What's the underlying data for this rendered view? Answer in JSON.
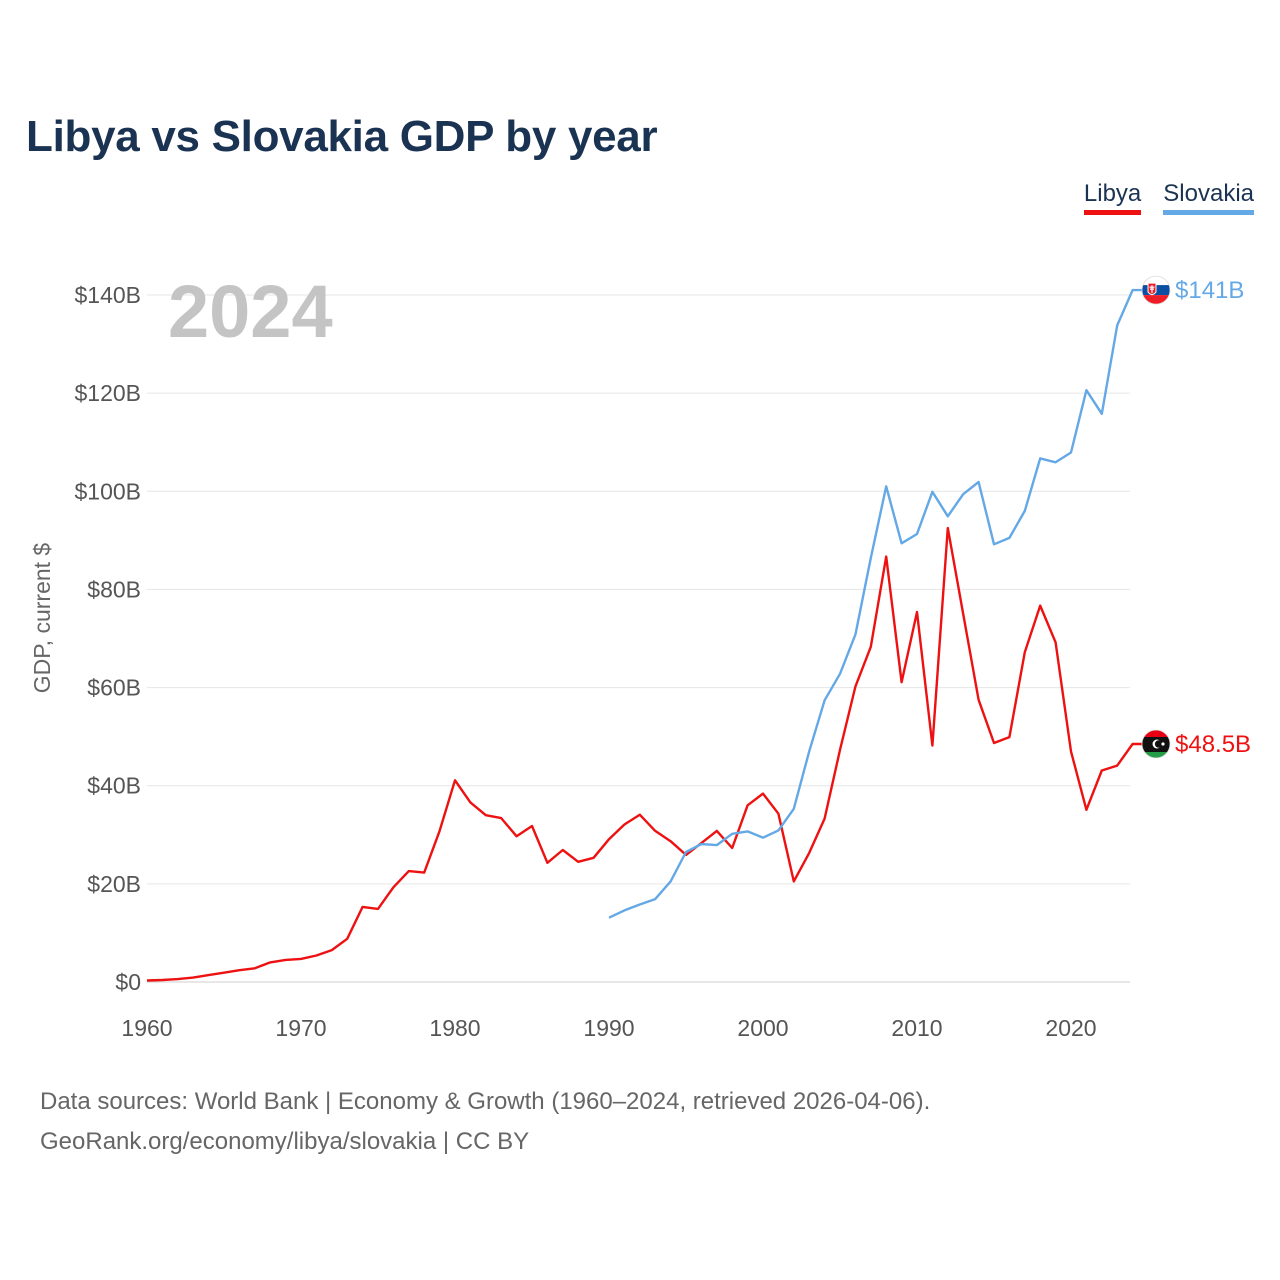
{
  "title": "Libya vs Slovakia GDP by year",
  "year_watermark": "2024",
  "legend": [
    {
      "label": "Libya",
      "color": "#ee1111"
    },
    {
      "label": "Slovakia",
      "color": "#64a8e6"
    }
  ],
  "footer": {
    "line1": "Data sources: World Bank | Economy & Growth (1960–2024, retrieved 2026-04-06).",
    "line2": "GeoRank.org/economy/libya/slovakia | CC BY"
  },
  "chart_data": {
    "type": "line",
    "title": "Libya vs Slovakia GDP by year",
    "xlabel": "",
    "ylabel": "GDP, current $",
    "xlim": [
      1960,
      2024
    ],
    "ylim": [
      0,
      140
    ],
    "x_ticks": [
      1960,
      1970,
      1980,
      1990,
      2000,
      2010,
      2020
    ],
    "y_ticks": [
      0,
      20,
      40,
      60,
      80,
      100,
      120,
      140
    ],
    "y_tick_labels": [
      "$0",
      "$20B",
      "$40B",
      "$60B",
      "$80B",
      "$100B",
      "$120B",
      "$140B"
    ],
    "units": "billions USD",
    "series": [
      {
        "name": "Libya",
        "color": "#ee1111",
        "end_label": "$48.5B",
        "flag": "libya-flag",
        "x": [
          1960,
          1961,
          1962,
          1963,
          1964,
          1965,
          1966,
          1967,
          1968,
          1969,
          1970,
          1971,
          1972,
          1973,
          1974,
          1975,
          1976,
          1977,
          1978,
          1979,
          1980,
          1981,
          1982,
          1983,
          1984,
          1985,
          1986,
          1987,
          1988,
          1989,
          1990,
          1991,
          1992,
          1993,
          1994,
          1995,
          1996,
          1997,
          1998,
          1999,
          2000,
          2001,
          2002,
          2003,
          2004,
          2005,
          2006,
          2007,
          2008,
          2009,
          2010,
          2011,
          2012,
          2013,
          2014,
          2015,
          2016,
          2017,
          2018,
          2019,
          2020,
          2021,
          2022,
          2023,
          2024
        ],
        "values": [
          0.3,
          0.4,
          0.6,
          0.9,
          1.4,
          1.9,
          2.4,
          2.8,
          4.0,
          4.5,
          4.7,
          5.4,
          6.5,
          8.8,
          15.3,
          14.9,
          19.3,
          22.6,
          22.3,
          30.8,
          41.1,
          36.6,
          34.0,
          33.4,
          29.7,
          31.8,
          24.3,
          26.9,
          24.5,
          25.3,
          29.1,
          32.1,
          34.1,
          30.8,
          28.7,
          25.9,
          28.3,
          30.8,
          27.3,
          36.0,
          38.4,
          34.3,
          20.5,
          26.3,
          33.3,
          47.3,
          60.2,
          68.3,
          86.7,
          61.1,
          75.4,
          48.2,
          92.5,
          75.0,
          57.5,
          48.7,
          49.9,
          67.2,
          76.7,
          69.2,
          47.0,
          35.1,
          43.1,
          44.1,
          48.5
        ]
      },
      {
        "name": "Slovakia",
        "color": "#64a8e6",
        "end_label": "$141B",
        "flag": "slovakia-flag",
        "x": [
          1990,
          1991,
          1992,
          1993,
          1994,
          1995,
          1996,
          1997,
          1998,
          1999,
          2000,
          2001,
          2002,
          2003,
          2004,
          2005,
          2006,
          2007,
          2008,
          2009,
          2010,
          2011,
          2012,
          2013,
          2014,
          2015,
          2016,
          2017,
          2018,
          2019,
          2020,
          2021,
          2022,
          2023,
          2024
        ],
        "values": [
          13.1,
          14.6,
          15.8,
          16.9,
          20.5,
          26.5,
          28.1,
          27.9,
          30.2,
          30.7,
          29.4,
          30.9,
          35.3,
          47.0,
          57.4,
          62.8,
          70.8,
          86.4,
          101.0,
          89.4,
          91.3,
          99.9,
          94.9,
          99.4,
          101.9,
          89.2,
          90.5,
          96.0,
          106.7,
          105.9,
          107.9,
          120.6,
          115.8,
          133.8,
          141.0
        ]
      }
    ]
  }
}
